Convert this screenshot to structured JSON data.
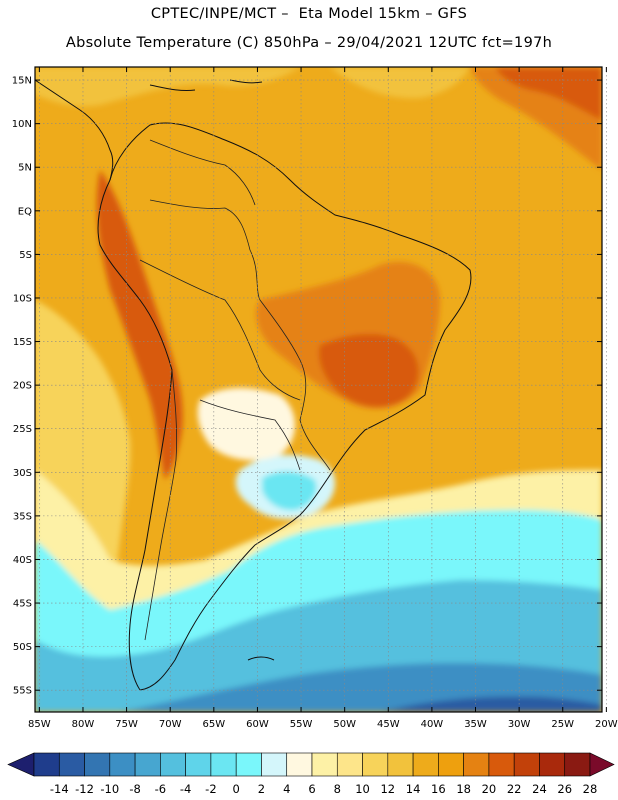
{
  "header": {
    "title_line1": "CPTEC/INPE/MCT –  Eta Model 15km – GFS",
    "title_line2": "Absolute Temperature (C) 850hPa – 29/04/2021 12UTC fct=197h"
  },
  "map": {
    "lat_labels": [
      "15N",
      "10N",
      "5N",
      "EQ",
      "5S",
      "10S",
      "15S",
      "20S",
      "25S",
      "30S",
      "35S",
      "40S",
      "45S",
      "50S",
      "55S"
    ],
    "lon_labels": [
      "85W",
      "80W",
      "75W",
      "70W",
      "65W",
      "60W",
      "55W",
      "50W",
      "45W",
      "40W",
      "35W",
      "30W",
      "25W",
      "20W"
    ],
    "lat_values": [
      15,
      10,
      5,
      0,
      -5,
      -10,
      -15,
      -20,
      -25,
      -30,
      -35,
      -40,
      -45,
      -50,
      -55
    ],
    "lon_values": [
      -85,
      -80,
      -75,
      -70,
      -65,
      -60,
      -55,
      -50,
      -45,
      -40,
      -35,
      -30,
      -25,
      -20
    ],
    "extent": {
      "lon_min": -85.5,
      "lon_max": -20.5,
      "lat_min": -57.5,
      "lat_max": 16.5
    },
    "gridlines": true
  },
  "colorbar": {
    "ticks": [
      "-14",
      "-12",
      "-10",
      "-8",
      "-6",
      "-4",
      "-2",
      "0",
      "2",
      "4",
      "6",
      "8",
      "10",
      "12",
      "14",
      "16",
      "18",
      "20",
      "22",
      "24",
      "26",
      "28"
    ],
    "colors": [
      "#1f3d8c",
      "#2a5ba3",
      "#3375b2",
      "#3c8fc4",
      "#47a6d0",
      "#54c0de",
      "#5fd4ea",
      "#6be6f2",
      "#7af7fb",
      "#d4f6fb",
      "#fff8e0",
      "#fdf1a6",
      "#fde58a",
      "#f7d35a",
      "#f2c23c",
      "#eeab1b",
      "#eea00e",
      "#e58212",
      "#d85a0c",
      "#c2410a",
      "#a9290c",
      "#8a1a12"
    ],
    "arrow_low": "#1d1f6e",
    "arrow_high": "#7a0a2a"
  }
}
